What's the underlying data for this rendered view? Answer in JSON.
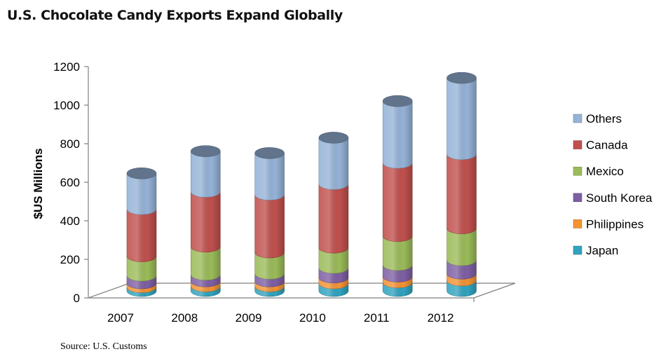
{
  "chart_data": {
    "type": "bar",
    "stacked": true,
    "style": "3d-cylinder",
    "title": "U.S. Chocolate Candy Exports Expand Globally",
    "xlabel": "",
    "ylabel": "$US Millions",
    "ylim": [
      0,
      1200
    ],
    "yticks": [
      "0",
      "200",
      "400",
      "600",
      "800",
      "1000",
      "1200"
    ],
    "categories": [
      "2007",
      "2008",
      "2009",
      "2010",
      "2011",
      "2012"
    ],
    "grid": false,
    "legend_position": "right",
    "series": [
      {
        "name": "Japan",
        "color": "#31A3BF",
        "values": [
          20,
          25,
          25,
          40,
          45,
          55
        ]
      },
      {
        "name": "Philippines",
        "color": "#F39334",
        "values": [
          20,
          25,
          25,
          30,
          30,
          35
        ]
      },
      {
        "name": "South Korea",
        "color": "#7E5FA3",
        "values": [
          40,
          35,
          40,
          50,
          60,
          70
        ]
      },
      {
        "name": "Mexico",
        "color": "#9BBB59",
        "values": [
          100,
          145,
          110,
          105,
          150,
          165
        ]
      },
      {
        "name": "Canada",
        "color": "#C0504D",
        "values": [
          245,
          285,
          300,
          330,
          380,
          385
        ]
      },
      {
        "name": "Others",
        "color": "#95B3D7",
        "values": [
          185,
          210,
          215,
          240,
          320,
          395
        ]
      }
    ]
  },
  "source": "Source: U.S. Customs"
}
